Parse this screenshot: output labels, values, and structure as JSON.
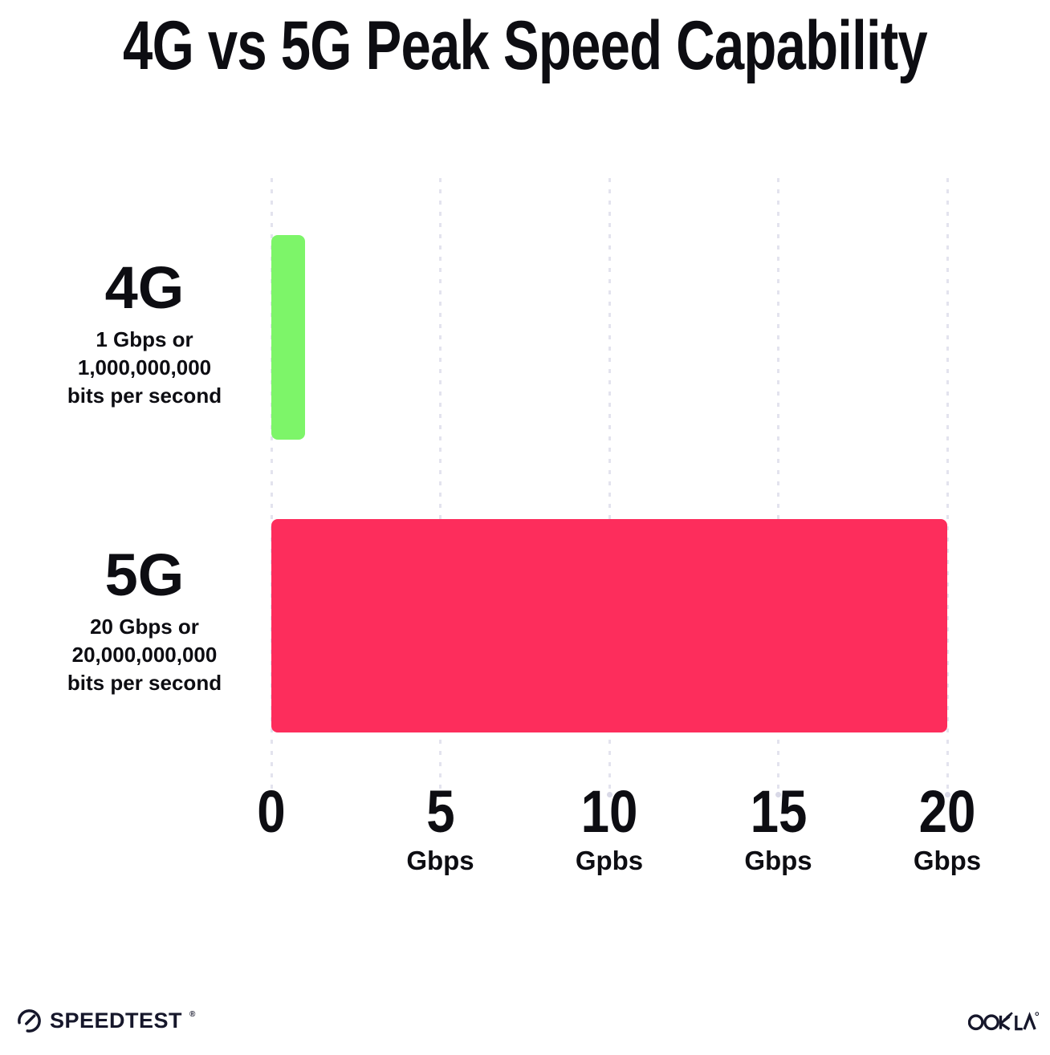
{
  "title": "4G vs 5G Peak Speed Capability",
  "chart_data": {
    "type": "bar",
    "orientation": "horizontal",
    "title": "4G vs 5G Peak Speed Capability",
    "xlim": [
      0,
      20
    ],
    "grid": "vertical-dotted",
    "legend": "none",
    "rows": [
      {
        "category": "4G",
        "value": 1,
        "color": "#7DF569",
        "sublabel_lines": [
          "1 Gbps or",
          "1,000,000,000",
          "bits per second"
        ]
      },
      {
        "category": "5G",
        "value": 20,
        "color": "#FD2D5C",
        "sublabel_lines": [
          "20 Gbps or",
          "20,000,000,000",
          "bits per second"
        ]
      }
    ],
    "x_ticks": [
      {
        "value": 0,
        "label": "0",
        "unit": ""
      },
      {
        "value": 5,
        "label": "5",
        "unit": "Gbps"
      },
      {
        "value": 10,
        "label": "10",
        "unit": "Gpbs"
      },
      {
        "value": 15,
        "label": "15",
        "unit": "Gbps"
      },
      {
        "value": 20,
        "label": "20",
        "unit": "Gbps"
      }
    ]
  },
  "footer": {
    "speedtest_wordmark": "SPEEDTEST",
    "speedtest_reg_mark": "®",
    "ookla_wordmark": "OOKLA",
    "ookla_reg_mark": "®"
  },
  "colors": {
    "background": "#FFFFFF",
    "text": "#0D0D12",
    "gridline": "#E3E3EE",
    "gridline_dot": "#D9D9E7",
    "logo": "#16172B"
  }
}
